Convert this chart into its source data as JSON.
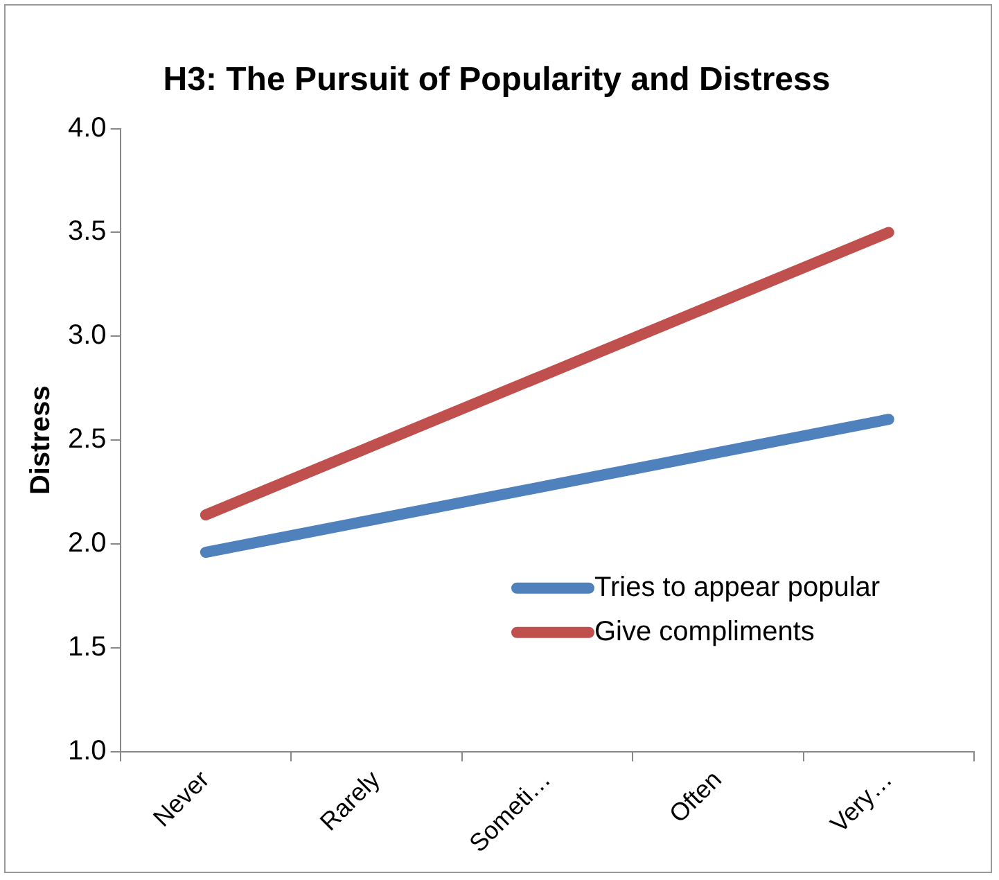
{
  "chart_data": {
    "type": "line",
    "title": "H3: The Pursuit of Popularity and Distress",
    "ylabel": "Distress",
    "categories": [
      "Never",
      "Rarely",
      "Someti…",
      "Often",
      "Very…"
    ],
    "series": [
      {
        "name": "Tries to appear popular",
        "color": "#4f81bd",
        "values": [
          1.96,
          2.12,
          2.28,
          2.44,
          2.6
        ]
      },
      {
        "name": "Give compliments",
        "color": "#c0504d",
        "values": [
          2.14,
          2.48,
          2.82,
          3.16,
          3.5
        ]
      }
    ],
    "ylim": [
      1.0,
      4.0
    ],
    "yticks": [
      {
        "value": 1,
        "label": "1.0"
      },
      {
        "value": 1.5,
        "label": "1.5"
      },
      {
        "value": 2,
        "label": "2.0"
      },
      {
        "value": 2.5,
        "label": "2.5"
      },
      {
        "value": 3,
        "label": "3.0"
      },
      {
        "value": 3.5,
        "label": "3.5"
      },
      {
        "value": 4,
        "label": "4.0"
      }
    ],
    "grid": false,
    "legend": "bottom right",
    "marker": "none",
    "line_style": "solid"
  }
}
